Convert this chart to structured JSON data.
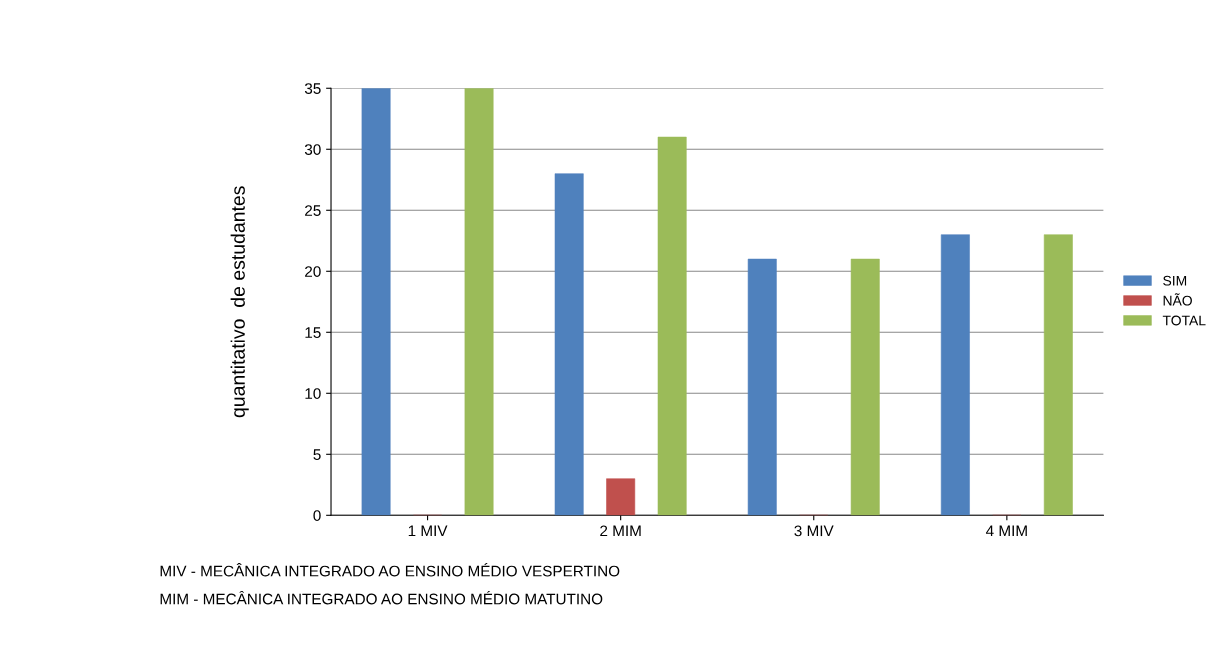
{
  "chart_data": {
    "type": "bar",
    "ylabel": "quantitativo  de estudantes",
    "categories": [
      "1 MIV",
      "2 MIM",
      "3 MIV",
      "4 MIM"
    ],
    "series": [
      {
        "name": "SIM",
        "color": "#4f81bd",
        "values": [
          35,
          28,
          21,
          23
        ]
      },
      {
        "name": "NÃO",
        "color": "#c0504d",
        "values": [
          0,
          3,
          0,
          0
        ]
      },
      {
        "name": "TOTAL",
        "color": "#9bbb59",
        "values": [
          35,
          31,
          21,
          23
        ]
      }
    ],
    "ylim": [
      0,
      35
    ],
    "yticks": [
      0,
      5,
      10,
      15,
      20,
      25,
      30,
      35
    ],
    "grid": "y",
    "legend": "right",
    "annotations": [
      "MIV - MECÂNICA INTEGRADO AO ENSINO MÉDIO VESPERTINO",
      "MIM - MECÂNICA INTEGRADO AO ENSINO MÉDIO MATUTINO"
    ]
  }
}
